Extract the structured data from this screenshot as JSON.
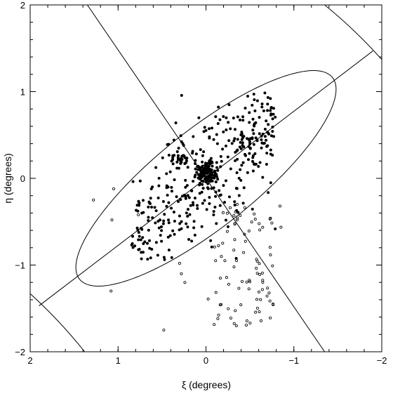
{
  "chart_data": {
    "type": "scatter",
    "title": "",
    "xlabel": "ξ (degrees)",
    "ylabel": "η (degrees)",
    "xlim": [
      2,
      -2
    ],
    "ylim": [
      -2,
      2
    ],
    "x_reversed": true,
    "grid": false,
    "legend": "none",
    "x_ticks": [
      "2",
      "1",
      "0",
      "−1",
      "−2"
    ],
    "y_ticks": [
      "−2",
      "−1",
      "0",
      "1",
      "2"
    ],
    "x_tick_values": [
      2,
      1,
      0,
      -1,
      -2
    ],
    "y_tick_values": [
      -2,
      -1,
      0,
      1,
      2
    ],
    "ellipse": {
      "center": [
        0,
        0
      ],
      "semi_major": 1.85,
      "semi_minor": 0.56,
      "major_axis_angle_deg": -39
    },
    "axis_lines": [
      {
        "from": [
          1.35,
          2.0
        ],
        "to": [
          -1.35,
          -2.0
        ]
      },
      {
        "from": [
          1.9,
          -1.47
        ],
        "to": [
          -1.9,
          1.47
        ]
      }
    ],
    "outer_curves": [
      {
        "from": [
          2.0,
          -1.33
        ],
        "to": [
          1.38,
          -2.0
        ]
      },
      {
        "from": [
          -1.35,
          2.0
        ],
        "to": [
          -2.0,
          1.37
        ]
      }
    ],
    "series": [
      {
        "marker": "filled",
        "points": []
      },
      {
        "marker": "open",
        "points": []
      }
    ]
  }
}
